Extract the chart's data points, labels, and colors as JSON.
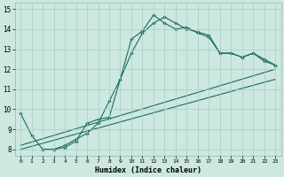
{
  "xlabel": "Humidex (Indice chaleur)",
  "xlim": [
    -0.5,
    23.5
  ],
  "ylim": [
    7.7,
    15.3
  ],
  "yticks": [
    8,
    9,
    10,
    11,
    12,
    13,
    14,
    15
  ],
  "xticks": [
    0,
    1,
    2,
    3,
    4,
    5,
    6,
    7,
    8,
    9,
    10,
    11,
    12,
    13,
    14,
    15,
    16,
    17,
    18,
    19,
    20,
    21,
    22,
    23
  ],
  "bg_color": "#cce8e0",
  "grid_color": "#aaccC4",
  "line_color": "#1a6b5a",
  "curve1_x": [
    0,
    1,
    2,
    3,
    4,
    5,
    6,
    7,
    8,
    9,
    10,
    11,
    12,
    13,
    14,
    15,
    16,
    17,
    18,
    19,
    20,
    21,
    22,
    23
  ],
  "curve1_y": [
    9.8,
    8.7,
    8.0,
    8.0,
    8.1,
    8.4,
    9.3,
    9.5,
    9.6,
    11.5,
    13.5,
    13.9,
    14.7,
    14.3,
    14.0,
    14.1,
    13.8,
    13.6,
    12.8,
    12.8,
    12.6,
    12.8,
    12.4,
    12.2
  ],
  "curve2_x": [
    2,
    3,
    4,
    5,
    6,
    7,
    8,
    9,
    10,
    11,
    12,
    13,
    14,
    15,
    16,
    17,
    18,
    19,
    20,
    21,
    22,
    23
  ],
  "curve2_y": [
    8.0,
    8.0,
    8.2,
    8.5,
    8.8,
    9.3,
    10.4,
    11.5,
    12.8,
    13.8,
    14.3,
    14.6,
    14.3,
    14.0,
    13.85,
    13.7,
    12.8,
    12.8,
    12.6,
    12.8,
    12.5,
    12.2
  ],
  "trend1_x": [
    0,
    23
  ],
  "trend1_y": [
    8.2,
    12.0
  ],
  "trend2_x": [
    0,
    23
  ],
  "trend2_y": [
    8.0,
    11.5
  ]
}
